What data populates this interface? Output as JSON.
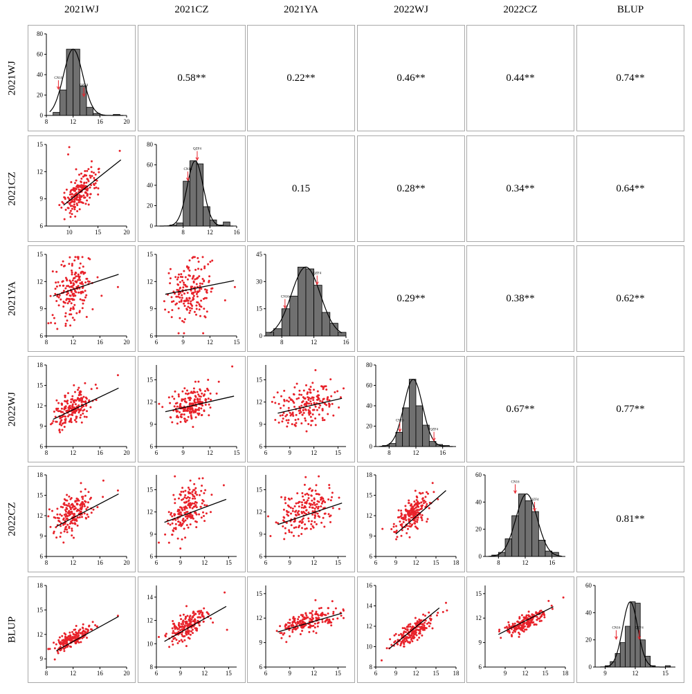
{
  "variables": [
    "2021WJ",
    "2021CZ",
    "2021YA",
    "2022WJ",
    "2022CZ",
    "BLUP"
  ],
  "colors": {
    "point": "#e8222a",
    "bar_fill": "#707070",
    "bar_edge": "#000000",
    "line": "#000000",
    "marker": "#e8222a",
    "border": "#a8a8a8"
  },
  "chart_data": [
    {
      "type": "correlation_matrix",
      "variables": [
        "2021WJ",
        "2021CZ",
        "2021YA",
        "2022WJ",
        "2022CZ",
        "BLUP"
      ],
      "correlations": {
        "2021CZ|2021WJ": "0.58**",
        "2021YA|2021WJ": "0.22**",
        "2022WJ|2021WJ": "0.46**",
        "2022CZ|2021WJ": "0.44**",
        "BLUP|2021WJ": "0.74**",
        "2021YA|2021CZ": "0.15",
        "2022WJ|2021CZ": "0.28**",
        "2022CZ|2021CZ": "0.34**",
        "BLUP|2021CZ": "0.64**",
        "2022WJ|2021YA": "0.29**",
        "2022CZ|2021YA": "0.38**",
        "BLUP|2021YA": "0.62**",
        "2022CZ|2022WJ": "0.67**",
        "BLUP|2022WJ": "0.77**",
        "BLUP|2022CZ": "0.81**"
      }
    },
    {
      "type": "bar",
      "name": "2021WJ",
      "bin_edges": [
        9,
        10,
        11,
        12,
        13,
        14,
        15,
        16,
        17,
        18,
        19
      ],
      "counts": [
        3,
        25,
        65,
        65,
        29,
        8,
        2,
        0,
        0,
        1
      ],
      "xlim": [
        8,
        20
      ],
      "xticks": [
        8,
        12,
        16,
        20
      ],
      "ylim": [
        0,
        80
      ],
      "yticks": [
        0,
        20,
        40,
        60,
        80
      ],
      "normal_curve": {
        "mean": 12,
        "sd": 1.45,
        "peak": 65
      },
      "markers": [
        {
          "label": "CN16",
          "x": 9.8,
          "y": 25
        },
        {
          "label": "QZF4",
          "x": 13.6,
          "y": 18
        }
      ]
    },
    {
      "type": "bar",
      "name": "2021CZ",
      "bin_edges": [
        6,
        7,
        8,
        9,
        10,
        11,
        12,
        13,
        14,
        15
      ],
      "counts": [
        1,
        3,
        44,
        64,
        61,
        19,
        6,
        1,
        4
      ],
      "xlim": [
        4,
        16
      ],
      "xticks": [
        8,
        12,
        16
      ],
      "ylim": [
        0,
        80
      ],
      "yticks": [
        0,
        20,
        40,
        60,
        80
      ],
      "normal_curve": {
        "mean": 9.8,
        "sd": 1.2,
        "peak": 64
      },
      "markers": [
        {
          "label": "CN16",
          "x": 8.7,
          "y": 44
        },
        {
          "label": "QZF4",
          "x": 10.1,
          "y": 64
        }
      ]
    },
    {
      "type": "bar",
      "name": "2021YA",
      "bin_edges": [
        6,
        7,
        8,
        9,
        10,
        11,
        12,
        13,
        14,
        15,
        16
      ],
      "counts": [
        2,
        4,
        15,
        22,
        38,
        37,
        28,
        13,
        7,
        2
      ],
      "xlim": [
        6,
        16
      ],
      "xticks": [
        8,
        12,
        16
      ],
      "ylim": [
        0,
        45
      ],
      "yticks": [
        0,
        15,
        30,
        45
      ],
      "normal_curve": {
        "mean": 11,
        "sd": 1.8,
        "peak": 38
      },
      "markers": [
        {
          "label": "CN16",
          "x": 8.4,
          "y": 15
        },
        {
          "label": "QZF4",
          "x": 12.4,
          "y": 28
        }
      ]
    },
    {
      "type": "bar",
      "name": "2022WJ",
      "bin_edges": [
        7,
        8,
        9,
        10,
        11,
        12,
        13,
        14,
        15,
        16,
        17
      ],
      "counts": [
        1,
        3,
        14,
        38,
        66,
        40,
        21,
        5,
        2,
        1
      ],
      "xlim": [
        6,
        18
      ],
      "xticks": [
        8,
        12,
        16
      ],
      "ylim": [
        0,
        80
      ],
      "yticks": [
        0,
        20,
        40,
        60,
        80
      ],
      "normal_curve": {
        "mean": 11.6,
        "sd": 1.4,
        "peak": 66
      },
      "markers": [
        {
          "label": "CN16",
          "x": 9.6,
          "y": 14
        },
        {
          "label": "QZF4",
          "x": 14.7,
          "y": 5
        }
      ]
    },
    {
      "type": "bar",
      "name": "2022CZ",
      "bin_edges": [
        7,
        8,
        9,
        10,
        11,
        12,
        13,
        14,
        15,
        16,
        17
      ],
      "counts": [
        1,
        3,
        13,
        30,
        46,
        41,
        33,
        12,
        4,
        3
      ],
      "xlim": [
        6,
        18
      ],
      "xticks": [
        8,
        12,
        16
      ],
      "ylim": [
        0,
        60
      ],
      "yticks": [
        0,
        20,
        40,
        60
      ],
      "normal_curve": {
        "mean": 12.2,
        "sd": 1.6,
        "peak": 46
      },
      "markers": [
        {
          "label": "CN16",
          "x": 10.5,
          "y": 46
        },
        {
          "label": "QZF4",
          "x": 13.4,
          "y": 33
        }
      ]
    },
    {
      "type": "bar",
      "name": "BLUP",
      "bin_edges": [
        9,
        9.5,
        10,
        10.5,
        11,
        11.5,
        12,
        12.5,
        13,
        13.5,
        14,
        14.5,
        15,
        15.5
      ],
      "counts": [
        1,
        4,
        10,
        18,
        30,
        48,
        47,
        20,
        8,
        1,
        0,
        0,
        1
      ],
      "xlim": [
        8,
        16
      ],
      "xticks": [
        9,
        12,
        15
      ],
      "ylim": [
        0,
        60
      ],
      "yticks": [
        0,
        20,
        40,
        60
      ],
      "normal_curve": {
        "mean": 11.5,
        "sd": 0.75,
        "peak": 48
      },
      "markers": [
        {
          "label": "CN16",
          "x": 10.1,
          "y": 20
        },
        {
          "label": "QZF4",
          "x": 12.4,
          "y": 20
        }
      ]
    },
    {
      "type": "scatter",
      "x_var": "2021WJ",
      "y_var": "2021CZ",
      "xlim": [
        6,
        20
      ],
      "xticks": [
        10,
        15,
        20
      ],
      "ylim": [
        6,
        15
      ],
      "yticks": [
        6,
        9,
        12,
        15
      ],
      "fit": {
        "x": [
          9,
          19
        ],
        "y": [
          8.3,
          13.3
        ]
      },
      "center": [
        11.9,
        9.8
      ],
      "spread": [
        1.4,
        1.2
      ],
      "r": 0.58,
      "n": 190,
      "outliers": [
        [
          10,
          14.7
        ],
        [
          18.8,
          14.3
        ],
        [
          9.8,
          13.9
        ]
      ]
    },
    {
      "type": "scatter",
      "x_var": "2021WJ",
      "y_var": "2021YA",
      "xlim": [
        8,
        20
      ],
      "xticks": [
        8,
        12,
        16,
        20
      ],
      "ylim": [
        6,
        15
      ],
      "yticks": [
        6,
        9,
        12,
        15
      ],
      "fit": {
        "x": [
          9,
          18.8
        ],
        "y": [
          10.4,
          12.8
        ]
      },
      "center": [
        11.9,
        11
      ],
      "spread": [
        1.4,
        1.8
      ],
      "r": 0.22,
      "n": 190,
      "outliers": [
        [
          18.7,
          11.4
        ]
      ]
    },
    {
      "type": "scatter",
      "x_var": "2021CZ",
      "y_var": "2021YA",
      "xlim": [
        6,
        15
      ],
      "xticks": [
        6,
        9,
        12,
        15
      ],
      "ylim": [
        6,
        15
      ],
      "yticks": [
        6,
        9,
        12,
        15
      ],
      "fit": {
        "x": [
          7,
          14.7
        ],
        "y": [
          10.6,
          12.1
        ]
      },
      "center": [
        9.8,
        11
      ],
      "spread": [
        1.2,
        1.8
      ],
      "r": 0.15,
      "n": 190,
      "outliers": [
        [
          14.8,
          11.4
        ]
      ]
    },
    {
      "type": "scatter",
      "x_var": "2021WJ",
      "y_var": "2022WJ",
      "xlim": [
        8,
        20
      ],
      "xticks": [
        8,
        12,
        16,
        20
      ],
      "ylim": [
        6,
        18
      ],
      "yticks": [
        6,
        9,
        12,
        15,
        18
      ],
      "fit": {
        "x": [
          9,
          18.8
        ],
        "y": [
          10,
          14.6
        ]
      },
      "center": [
        11.9,
        11.6
      ],
      "spread": [
        1.4,
        1.4
      ],
      "r": 0.46,
      "n": 190,
      "outliers": [
        [
          18.7,
          16.5
        ]
      ]
    },
    {
      "type": "scatter",
      "x_var": "2021CZ",
      "y_var": "2022WJ",
      "xlim": [
        6,
        15
      ],
      "xticks": [
        6,
        9,
        12,
        15
      ],
      "ylim": [
        6,
        17
      ],
      "yticks": [
        6,
        9,
        12,
        15
      ],
      "fit": {
        "x": [
          7,
          14.7
        ],
        "y": [
          10.7,
          12.8
        ]
      },
      "center": [
        9.8,
        11.6
      ],
      "spread": [
        1.2,
        1.4
      ],
      "r": 0.28,
      "n": 190,
      "outliers": [
        [
          14.5,
          16.8
        ]
      ]
    },
    {
      "type": "scatter",
      "x_var": "2021YA",
      "y_var": "2022WJ",
      "xlim": [
        6,
        16
      ],
      "xticks": [
        6,
        9,
        12,
        15
      ],
      "ylim": [
        6,
        17
      ],
      "yticks": [
        6,
        9,
        12,
        15
      ],
      "fit": {
        "x": [
          7.5,
          15.5
        ],
        "y": [
          10.5,
          12.5
        ]
      },
      "center": [
        11,
        11.6
      ],
      "spread": [
        1.8,
        1.4
      ],
      "r": 0.29,
      "n": 190,
      "outliers": [
        [
          12.2,
          16.3
        ]
      ]
    },
    {
      "type": "scatter",
      "x_var": "2021WJ",
      "y_var": "2022CZ",
      "xlim": [
        8,
        20
      ],
      "xticks": [
        8,
        12,
        16,
        20
      ],
      "ylim": [
        6,
        18
      ],
      "yticks": [
        6,
        9,
        12,
        15,
        18
      ],
      "fit": {
        "x": [
          9.5,
          18.8
        ],
        "y": [
          10.4,
          15.2
        ]
      },
      "center": [
        11.9,
        12.2
      ],
      "spread": [
        1.4,
        1.6
      ],
      "r": 0.44,
      "n": 190,
      "outliers": [
        [
          18.7,
          15.7
        ]
      ]
    },
    {
      "type": "scatter",
      "x_var": "2021CZ",
      "y_var": "2022CZ",
      "xlim": [
        6,
        16
      ],
      "xticks": [
        6,
        9,
        12,
        15
      ],
      "ylim": [
        6,
        17
      ],
      "yticks": [
        6,
        9,
        12,
        15
      ],
      "fit": {
        "x": [
          7,
          14.7
        ],
        "y": [
          10.6,
          13.7
        ]
      },
      "center": [
        9.8,
        12.2
      ],
      "spread": [
        1.2,
        1.6
      ],
      "r": 0.34,
      "n": 190,
      "outliers": [
        [
          8.3,
          16.8
        ],
        [
          14.4,
          15.6
        ]
      ]
    },
    {
      "type": "scatter",
      "x_var": "2021YA",
      "y_var": "2022CZ",
      "xlim": [
        6,
        16
      ],
      "xticks": [
        6,
        9,
        12,
        15
      ],
      "ylim": [
        6,
        17
      ],
      "yticks": [
        6,
        9,
        12,
        15
      ],
      "fit": {
        "x": [
          7.5,
          15.5
        ],
        "y": [
          10.3,
          13.2
        ]
      },
      "center": [
        11,
        12.2
      ],
      "spread": [
        1.8,
        1.6
      ],
      "r": 0.38,
      "n": 190,
      "outliers": [
        [
          12.6,
          16.8
        ]
      ]
    },
    {
      "type": "scatter",
      "x_var": "2022WJ",
      "y_var": "2022CZ",
      "xlim": [
        6,
        18
      ],
      "xticks": [
        6,
        9,
        12,
        15,
        18
      ],
      "ylim": [
        6,
        18
      ],
      "yticks": [
        6,
        9,
        12,
        15,
        18
      ],
      "fit": {
        "x": [
          9,
          16.5
        ],
        "y": [
          9.3,
          15.7
        ]
      },
      "center": [
        11.6,
        12.2
      ],
      "spread": [
        1.4,
        1.6
      ],
      "r": 0.67,
      "n": 190,
      "outliers": [
        [
          14.5,
          16.8
        ]
      ]
    },
    {
      "type": "scatter",
      "x_var": "2021WJ",
      "y_var": "BLUP",
      "xlim": [
        8,
        20
      ],
      "xticks": [
        8,
        12,
        16,
        20
      ],
      "ylim": [
        8,
        18
      ],
      "yticks": [
        9,
        12,
        15,
        18
      ],
      "fit": {
        "x": [
          9.5,
          18.8
        ],
        "y": [
          10,
          14.2
        ]
      },
      "center": [
        11.9,
        11.5
      ],
      "spread": [
        1.4,
        0.75
      ],
      "r": 0.74,
      "n": 190,
      "outliers": [
        [
          18.7,
          14.3
        ]
      ]
    },
    {
      "type": "scatter",
      "x_var": "2021CZ",
      "y_var": "BLUP",
      "xlim": [
        6,
        16
      ],
      "xticks": [
        6,
        9,
        12,
        15
      ],
      "ylim": [
        8,
        15
      ],
      "yticks": [
        8,
        10,
        12,
        14
      ],
      "fit": {
        "x": [
          7,
          14.7
        ],
        "y": [
          10.2,
          13.2
        ]
      },
      "center": [
        9.8,
        11.5
      ],
      "spread": [
        1.2,
        0.75
      ],
      "r": 0.64,
      "n": 190,
      "outliers": [
        [
          14.5,
          14.4
        ],
        [
          14.8,
          11.2
        ]
      ]
    },
    {
      "type": "scatter",
      "x_var": "2021YA",
      "y_var": "BLUP",
      "xlim": [
        6,
        16
      ],
      "xticks": [
        6,
        9,
        12,
        15
      ],
      "ylim": [
        6,
        16
      ],
      "yticks": [
        6,
        9,
        12,
        15
      ],
      "fit": {
        "x": [
          7.5,
          15.5
        ],
        "y": [
          10.3,
          12.6
        ]
      },
      "center": [
        11,
        11.5
      ],
      "spread": [
        1.8,
        0.75
      ],
      "r": 0.62,
      "n": 190,
      "outliers": [
        [
          12.2,
          14.2
        ]
      ]
    },
    {
      "type": "scatter",
      "x_var": "2022WJ",
      "y_var": "BLUP",
      "xlim": [
        6,
        18
      ],
      "xticks": [
        6,
        9,
        12,
        15,
        18
      ],
      "ylim": [
        8,
        16
      ],
      "yticks": [
        8,
        10,
        12,
        14,
        16
      ],
      "fit": {
        "x": [
          8,
          15.5
        ],
        "y": [
          9.8,
          13.8
        ]
      },
      "center": [
        11.6,
        11.5
      ],
      "spread": [
        1.4,
        0.75
      ],
      "r": 0.77,
      "n": 190,
      "outliers": [
        [
          16.5,
          14.3
        ]
      ]
    },
    {
      "type": "scatter",
      "x_var": "2022CZ",
      "y_var": "BLUP",
      "xlim": [
        6,
        18
      ],
      "xticks": [
        9,
        12,
        15,
        18
      ],
      "ylim": [
        6,
        16
      ],
      "yticks": [
        6,
        9,
        12,
        15
      ],
      "fit": {
        "x": [
          8,
          16.2
        ],
        "y": [
          10,
          13.4
        ]
      },
      "center": [
        12.2,
        11.5
      ],
      "spread": [
        1.6,
        0.75
      ],
      "r": 0.81,
      "n": 190,
      "outliers": [
        [
          15.5,
          14.1
        ]
      ]
    }
  ]
}
